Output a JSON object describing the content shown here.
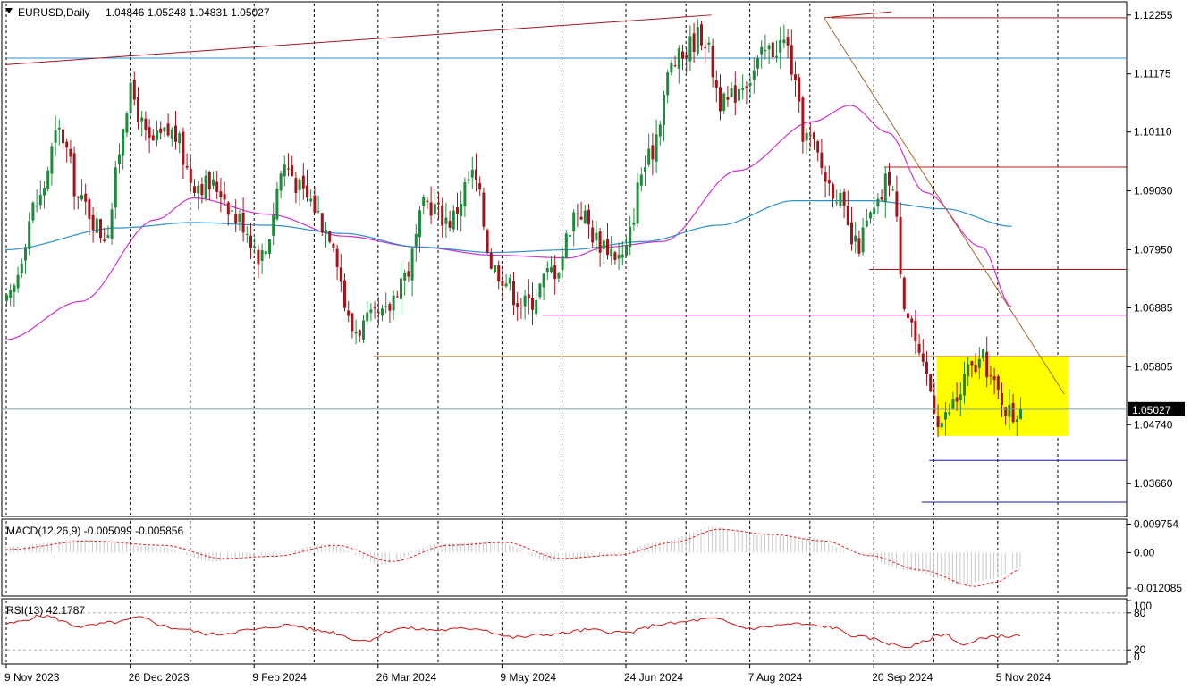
{
  "header": {
    "symbol": "EURUSD,Daily",
    "ohlc": "1.04846 1.05248 1.04831 1.05027",
    "dropdown_icon": "triangle-down-icon"
  },
  "colors": {
    "bull_candle": "#1f8a3b",
    "bear_candle": "#a4141a",
    "ma_fast": "#d12fd1",
    "ma_slow": "#2b8fd0",
    "resistance": "#b01818",
    "support_orange": "#e88a2a",
    "support_blue": "#1a1a9e",
    "trend_brown": "#a8692c",
    "zone_fill": "#ffff00",
    "macd_hist": "#c8c8c8",
    "macd_signal": "#e02020",
    "rsi_line": "#d01010"
  },
  "chart_data": [
    {
      "type": "candlestick",
      "title": "EURUSD,Daily",
      "ohlc_last": {
        "open": 1.04846,
        "high": 1.05248,
        "low": 1.04831,
        "close": 1.05027
      },
      "ylim": [
        1.0309,
        1.12465
      ],
      "y_ticks": [
        "1.12255",
        "1.11175",
        "1.10110",
        "1.09030",
        "1.07950",
        "1.06885",
        "1.05805",
        "1.04740",
        "1.03660"
      ],
      "current_price_label": "1.05027",
      "x_ticks": [
        "9 Nov 2023",
        "26 Dec 2023",
        "9 Feb 2024",
        "26 Mar 2024",
        "9 May 2024",
        "24 Jun 2024",
        "7 Aug 2024",
        "20 Sep 2024",
        "5 Nov 2024"
      ],
      "anchors": [
        [
          0,
          1.0695
        ],
        [
          8,
          1.088
        ],
        [
          14,
          1.101
        ],
        [
          20,
          1.088
        ],
        [
          26,
          1.0825
        ],
        [
          33,
          1.108
        ],
        [
          38,
          1.099
        ],
        [
          44,
          1.101
        ],
        [
          50,
          1.092
        ],
        [
          56,
          1.091
        ],
        [
          62,
          1.085
        ],
        [
          68,
          1.0785
        ],
        [
          74,
          1.095
        ],
        [
          80,
          1.089
        ],
        [
          86,
          1.083
        ],
        [
          92,
          1.065
        ],
        [
          100,
          1.067
        ],
        [
          106,
          1.075
        ],
        [
          112,
          1.088
        ],
        [
          118,
          1.085
        ],
        [
          124,
          1.093
        ],
        [
          130,
          1.076
        ],
        [
          138,
          1.0695
        ],
        [
          146,
          1.076
        ],
        [
          152,
          1.087
        ],
        [
          158,
          1.081
        ],
        [
          164,
          1.078
        ],
        [
          170,
          1.095
        ],
        [
          178,
          1.114
        ],
        [
          185,
          1.119
        ],
        [
          191,
          1.106
        ],
        [
          197,
          1.111
        ],
        [
          203,
          1.116
        ],
        [
          207,
          1.1175
        ],
        [
          213,
          1.1
        ],
        [
          220,
          1.091
        ],
        [
          226,
          1.08
        ],
        [
          231,
          1.086
        ],
        [
          235,
          1.093
        ],
        [
          240,
          1.068
        ],
        [
          244,
          1.057
        ],
        [
          249,
          1.048
        ],
        [
          253,
          1.052
        ],
        [
          256,
          1.057
        ],
        [
          260,
          1.059
        ],
        [
          264,
          1.053
        ],
        [
          268,
          1.049
        ],
        [
          270,
          1.0503
        ]
      ],
      "ma_fast_anchors": [
        [
          0,
          1.063
        ],
        [
          20,
          1.07
        ],
        [
          40,
          1.085
        ],
        [
          50,
          1.089
        ],
        [
          70,
          1.086
        ],
        [
          90,
          1.082
        ],
        [
          110,
          1.08
        ],
        [
          130,
          1.0785
        ],
        [
          150,
          1.078
        ],
        [
          160,
          1.08
        ],
        [
          175,
          1.081
        ],
        [
          195,
          1.094
        ],
        [
          215,
          1.103
        ],
        [
          225,
          1.106
        ],
        [
          235,
          1.101
        ],
        [
          245,
          1.09
        ],
        [
          260,
          1.08
        ],
        [
          268,
          1.069
        ]
      ],
      "ma_slow_anchors": [
        [
          0,
          1.0795
        ],
        [
          30,
          1.0835
        ],
        [
          50,
          1.0845
        ],
        [
          70,
          1.084
        ],
        [
          90,
          1.0825
        ],
        [
          110,
          1.08
        ],
        [
          130,
          1.079
        ],
        [
          150,
          1.0795
        ],
        [
          170,
          1.081
        ],
        [
          190,
          1.084
        ],
        [
          210,
          1.0885
        ],
        [
          230,
          1.0885
        ],
        [
          250,
          1.087
        ],
        [
          268,
          1.0838
        ]
      ],
      "horizontal_levels": [
        {
          "price": 1.12205,
          "from_bar": 220,
          "color": "resistance"
        },
        {
          "price": 1.11465,
          "from_bar": 0,
          "color": "ma_slow"
        },
        {
          "price": 1.09465,
          "from_bar": 234,
          "color": "resistance"
        },
        {
          "price": 1.0759,
          "from_bar": 230,
          "color": "resistance"
        },
        {
          "price": 1.0675,
          "from_bar": 143,
          "color": "ma_fast"
        },
        {
          "price": 1.05995,
          "from_bar": 98,
          "color": "support_orange"
        },
        {
          "price": 1.04085,
          "from_bar": 246,
          "color": "support_blue"
        },
        {
          "price": 1.0332,
          "from_bar": 244,
          "color": "support_blue"
        }
      ],
      "trend_lines": [
        {
          "from": [
            0,
            1.11345
          ],
          "to": [
            188,
            1.12255
          ],
          "color": "bear_candle"
        },
        {
          "from": [
            218,
            1.12205
          ],
          "to": [
            236,
            1.12315
          ],
          "color": "resistance"
        },
        {
          "from": [
            218,
            1.12205
          ],
          "to": [
            282,
            1.053
          ],
          "color": "trend_brown"
        }
      ],
      "zone": {
        "from_bar": 248,
        "to_bar": 283,
        "top": 1.05995,
        "bottom": 1.04535
      }
    },
    {
      "type": "bar",
      "title": "MACD(12,26,9) -0.005099 -0.005856",
      "series": [
        {
          "name": "MACD",
          "anchors": [
            [
              0,
              0.002
            ],
            [
              20,
              0.0045
            ],
            [
              40,
              0.002
            ],
            [
              55,
              -0.003
            ],
            [
              70,
              -0.001
            ],
            [
              85,
              0.003
            ],
            [
              100,
              -0.004
            ],
            [
              115,
              0.003
            ],
            [
              130,
              0.004
            ],
            [
              145,
              -0.003
            ],
            [
              160,
              -0.001
            ],
            [
              175,
              0.004
            ],
            [
              188,
              0.0088
            ],
            [
              200,
              0.006
            ],
            [
              215,
              0.005
            ],
            [
              225,
              0.0
            ],
            [
              240,
              -0.006
            ],
            [
              255,
              -0.011
            ],
            [
              262,
              -0.009
            ],
            [
              270,
              -0.0051
            ]
          ]
        },
        {
          "name": "Signal",
          "anchors": [
            [
              0,
              0.001
            ],
            [
              22,
              0.004
            ],
            [
              42,
              0.0025
            ],
            [
              58,
              -0.002
            ],
            [
              72,
              -0.0012
            ],
            [
              88,
              0.0025
            ],
            [
              103,
              -0.003
            ],
            [
              118,
              0.0025
            ],
            [
              133,
              0.0035
            ],
            [
              148,
              -0.002
            ],
            [
              163,
              -0.0008
            ],
            [
              178,
              0.0035
            ],
            [
              190,
              0.008
            ],
            [
              204,
              0.0062
            ],
            [
              218,
              0.004
            ],
            [
              230,
              -0.001
            ],
            [
              244,
              -0.006
            ],
            [
              258,
              -0.0115
            ],
            [
              264,
              -0.01
            ],
            [
              270,
              -0.0059
            ]
          ]
        }
      ],
      "ylim": [
        -0.0142,
        0.0108
      ],
      "y_ticks": [
        "0.009754",
        "0.00",
        "-0.012085"
      ]
    },
    {
      "type": "line",
      "title": "RSI(13) 42.1787",
      "ylim": [
        0,
        100
      ],
      "y_ticks": [
        "100",
        "80",
        "20",
        "0"
      ],
      "levels": [
        80,
        20
      ],
      "anchors": [
        [
          0,
          62
        ],
        [
          10,
          75
        ],
        [
          20,
          58
        ],
        [
          30,
          65
        ],
        [
          35,
          72
        ],
        [
          45,
          55
        ],
        [
          55,
          45
        ],
        [
          65,
          52
        ],
        [
          75,
          60
        ],
        [
          85,
          50
        ],
        [
          95,
          35
        ],
        [
          105,
          55
        ],
        [
          115,
          52
        ],
        [
          125,
          55
        ],
        [
          135,
          40
        ],
        [
          145,
          45
        ],
        [
          155,
          52
        ],
        [
          165,
          48
        ],
        [
          175,
          62
        ],
        [
          188,
          70
        ],
        [
          198,
          55
        ],
        [
          210,
          62
        ],
        [
          218,
          58
        ],
        [
          228,
          40
        ],
        [
          240,
          25
        ],
        [
          250,
          45
        ],
        [
          255,
          28
        ],
        [
          262,
          42
        ],
        [
          270,
          42.18
        ]
      ]
    }
  ]
}
